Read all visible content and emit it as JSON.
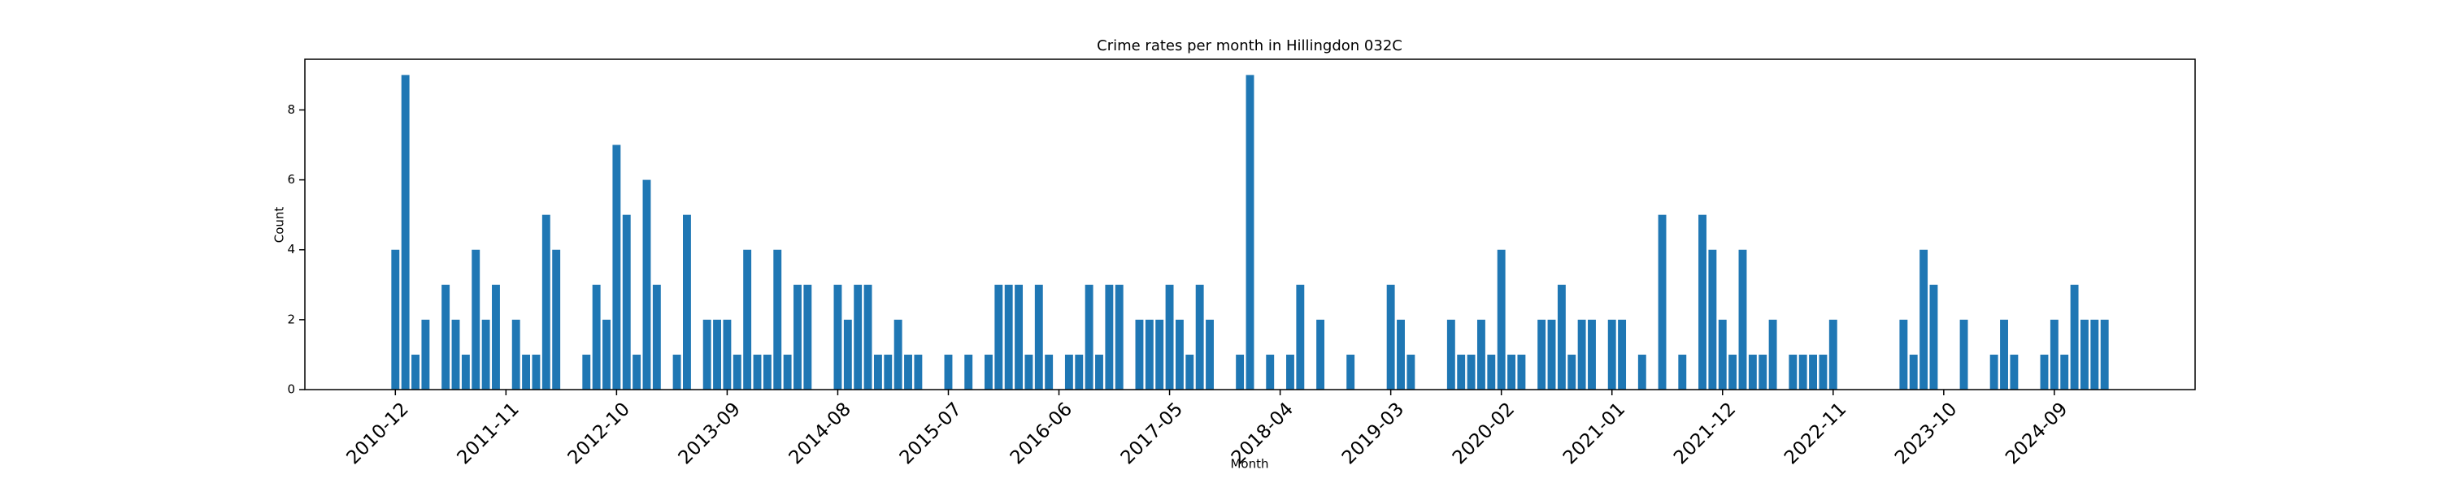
{
  "chart_data": {
    "type": "bar",
    "title": "Crime rates per month in Hillingdon 032C",
    "x_label": "Month",
    "y_label": "Count",
    "color": "#1f77b4",
    "categories": [
      "2010-12",
      null,
      null,
      null,
      null,
      null,
      null,
      null,
      null,
      null,
      null,
      "2011-11",
      null,
      null,
      null,
      null,
      null,
      null,
      null,
      null,
      null,
      null,
      "2012-10",
      null,
      null,
      null,
      null,
      null,
      null,
      null,
      null,
      null,
      null,
      "2013-09",
      null,
      null,
      null,
      null,
      null,
      null,
      null,
      null,
      null,
      null,
      "2014-08",
      null,
      null,
      null,
      null,
      null,
      null,
      null,
      null,
      null,
      null,
      "2015-07",
      null,
      null,
      null,
      null,
      null,
      null,
      null,
      null,
      null,
      null,
      "2016-06",
      null,
      null,
      null,
      null,
      null,
      null,
      null,
      null,
      null,
      null,
      "2017-05",
      null,
      null,
      null,
      null,
      null,
      null,
      null,
      null,
      null,
      null,
      "2018-04",
      null,
      null,
      null,
      null,
      null,
      null,
      null,
      null,
      null,
      null,
      "2019-03",
      null,
      null,
      null,
      null,
      null,
      null,
      null,
      null,
      null,
      null,
      "2020-02",
      null,
      null,
      null,
      null,
      null,
      null,
      null,
      null,
      null,
      null,
      "2021-01",
      null,
      null,
      null,
      null,
      null,
      null,
      null,
      null,
      null,
      null,
      "2021-12",
      null,
      null,
      null,
      null,
      null,
      null,
      null,
      null,
      null,
      null,
      "2022-11",
      null,
      null,
      null,
      null,
      null,
      null,
      null,
      null,
      null,
      null,
      "2023-10",
      null,
      null,
      null,
      null,
      null,
      null,
      null,
      null,
      null,
      null,
      "2024-09",
      null,
      null,
      null,
      null,
      null
    ],
    "values": [
      4,
      9,
      1,
      2,
      0,
      3,
      2,
      1,
      4,
      2,
      3,
      0,
      2,
      1,
      1,
      5,
      4,
      0,
      0,
      1,
      3,
      2,
      7,
      5,
      1,
      6,
      3,
      0,
      1,
      5,
      0,
      2,
      2,
      2,
      1,
      4,
      1,
      1,
      4,
      1,
      3,
      3,
      0,
      0,
      3,
      2,
      3,
      3,
      1,
      1,
      2,
      1,
      1,
      0,
      0,
      1,
      0,
      1,
      0,
      1,
      3,
      3,
      3,
      1,
      3,
      1,
      0,
      1,
      1,
      3,
      1,
      3,
      3,
      0,
      2,
      2,
      2,
      3,
      2,
      1,
      3,
      2,
      0,
      0,
      1,
      9,
      0,
      1,
      0,
      1,
      3,
      0,
      2,
      0,
      0,
      1,
      0,
      0,
      0,
      3,
      2,
      1,
      0,
      0,
      0,
      2,
      1,
      1,
      2,
      1,
      4,
      1,
      1,
      0,
      2,
      2,
      3,
      1,
      2,
      2,
      0,
      2,
      2,
      0,
      1,
      0,
      5,
      0,
      1,
      0,
      5,
      4,
      2,
      1,
      4,
      1,
      1,
      2,
      0,
      1,
      1,
      1,
      1,
      2,
      0,
      0,
      0,
      0,
      0,
      0,
      2,
      1,
      4,
      3,
      0,
      0,
      2,
      0,
      0,
      1,
      2,
      1,
      0,
      0,
      1,
      2,
      1,
      3,
      2,
      2,
      2
    ],
    "ylim": [
      0,
      9.45
    ],
    "yticks": [
      0,
      2,
      4,
      6,
      8
    ]
  }
}
